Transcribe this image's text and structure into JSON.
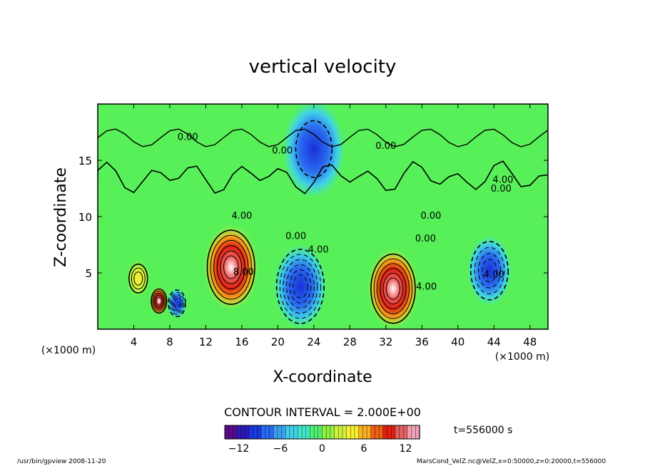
{
  "chart_data": {
    "type": "heatmap",
    "title": "vertical velocity",
    "xlabel": "X-coordinate",
    "ylabel": "Z-coordinate",
    "x_unit_note": "(×1000 m)",
    "y_unit_note": "(×1000 m)",
    "xlim": [
      0,
      50
    ],
    "ylim": [
      0,
      20
    ],
    "x_ticks": [
      "4",
      "8",
      "12",
      "16",
      "20",
      "24",
      "28",
      "32",
      "36",
      "40",
      "44",
      "48"
    ],
    "y_ticks": [
      "5",
      "10",
      "15"
    ],
    "contour_interval_text": "CONTOUR INTERVAL = 2.000E+00",
    "contour_labels": [
      "0.00",
      "0.00",
      "0.00",
      "4.00",
      "8.00",
      "0.00",
      "4.00",
      "0.00",
      "0.00",
      "4.00",
      "4.00",
      "4.00",
      "0.00"
    ],
    "colorbar": {
      "range": [
        -14,
        14
      ],
      "ticks": [
        "−12",
        "−6",
        "0",
        "6",
        "12"
      ],
      "colors": [
        "#5a0a8c",
        "#2a1ab8",
        "#1838e0",
        "#2a6af0",
        "#3aa0f0",
        "#40d0e8",
        "#40e8c8",
        "#50f070",
        "#90f040",
        "#d0f040",
        "#f8f030",
        "#f8b020",
        "#f06010",
        "#e02010",
        "#e06060",
        "#f0a0b0"
      ]
    },
    "cells": [
      {
        "x": 4.5,
        "z": 4.5,
        "v": 6,
        "r": 1.3
      },
      {
        "x": 6.8,
        "z": 2.5,
        "v": 10,
        "r": 1.0
      },
      {
        "x": 8.8,
        "z": 2.3,
        "v": -10,
        "r": 1.1
      },
      {
        "x": 14.8,
        "z": 5.5,
        "v": 14,
        "r": 3.0
      },
      {
        "x": 22.5,
        "z": 3.8,
        "v": -14,
        "r": 3.0
      },
      {
        "x": 32.8,
        "z": 3.6,
        "v": 12,
        "r": 2.8
      },
      {
        "x": 43.5,
        "z": 5.2,
        "v": -8,
        "r": 2.5
      },
      {
        "x": 24,
        "z": 16,
        "v": -2,
        "r": 3.5
      }
    ],
    "time_label": "t=556000 s"
  },
  "footer": {
    "left": "/usr/bin/gpview   2008-11-20",
    "right": "MarsCond_VelZ.nc@VelZ,x=0:50000,z=0:20000,t=556000"
  }
}
